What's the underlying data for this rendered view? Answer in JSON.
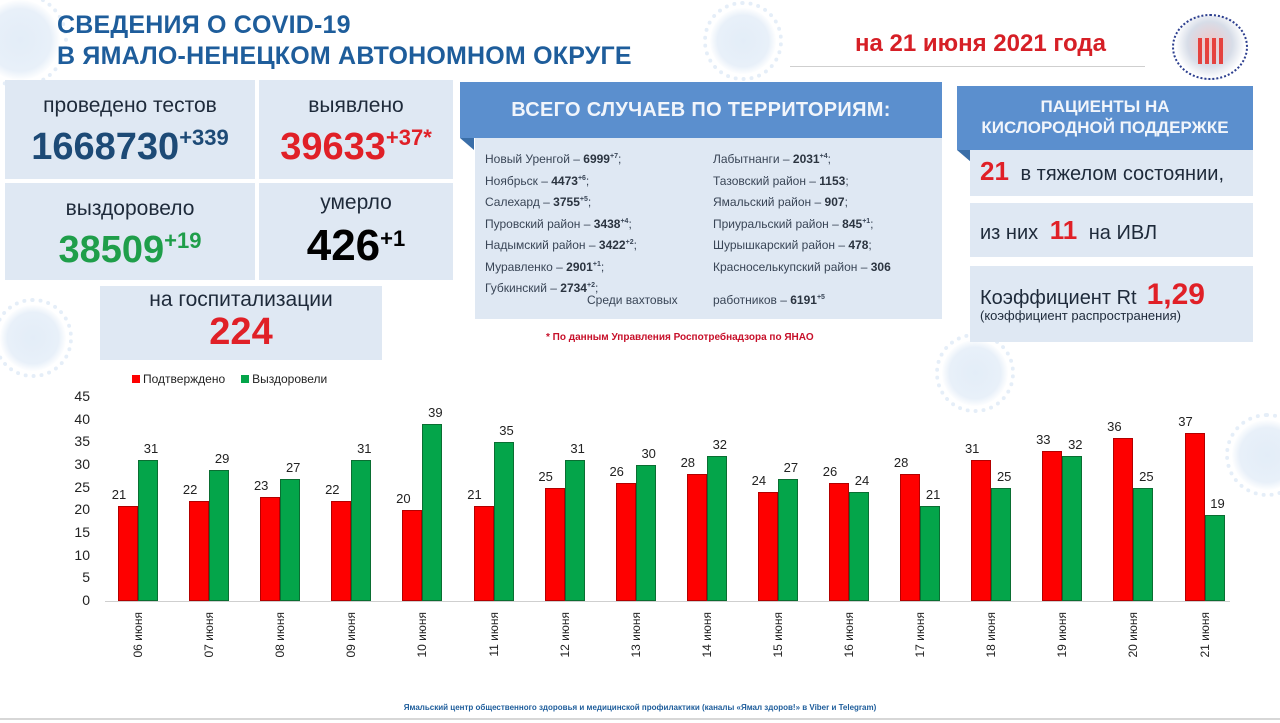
{
  "header": {
    "title_line1": "СВЕДЕНИЯ О COVID-19",
    "title_line2": "В ЯМАЛО-НЕНЕЦКОМ АВТОНОМНОМ ОКРУГЕ",
    "date": "на 21 июня 2021 года",
    "logo_text": "ЯМАЛ - территория здоровья!"
  },
  "stats": {
    "tests": {
      "label": "проведено тестов",
      "value": "1668730",
      "delta": "+339"
    },
    "detected": {
      "label": "выявлено",
      "value": "39633",
      "delta": "+37*"
    },
    "recovered": {
      "label": "выздоровело",
      "value": "38509",
      "delta": "+19"
    },
    "died": {
      "label": "умерло",
      "value": "426",
      "delta": "+1"
    },
    "hospitalized": {
      "label": "на госпитализации",
      "value": "224"
    }
  },
  "territories": {
    "title": "ВСЕГО СЛУЧАЕВ ПО ТЕРРИТОРИЯМ:",
    "left": [
      {
        "name": "Новый Уренгой – ",
        "value": "6999",
        "delta": "+7",
        "sep": ";"
      },
      {
        "name": "Ноябрьск – ",
        "value": "4473",
        "delta": "+6",
        "sep": ";"
      },
      {
        "name": "Салехард – ",
        "value": "3755",
        "delta": "+5",
        "sep": ";"
      },
      {
        "name": "Пуровский район – ",
        "value": "3438",
        "delta": "+4",
        "sep": ";"
      },
      {
        "name": "Надымский район – ",
        "value": "3422",
        "delta": "+2",
        "sep": ";"
      },
      {
        "name": "Муравленко – ",
        "value": "2901",
        "delta": "+1",
        "sep": ";"
      },
      {
        "name": "Губкинский – ",
        "value": "2734",
        "delta": "+2",
        "sep": ";"
      }
    ],
    "right": [
      {
        "name": "Лабытнанги – ",
        "value": "2031",
        "delta": "+4",
        "sep": ";"
      },
      {
        "name": "Тазовский район – ",
        "value": "1153",
        "delta": "",
        "sep": ";"
      },
      {
        "name": "Ямальский район – ",
        "value": "907",
        "delta": "",
        "sep": ";"
      },
      {
        "name": "Приуральский район – ",
        "value": "845",
        "delta": "+1",
        "sep": ";"
      },
      {
        "name": "Шурышкарский район – ",
        "value": "478",
        "delta": "",
        "sep": ";"
      },
      {
        "name": "Красноселькупский район – ",
        "value": "306",
        "delta": "",
        "sep": ""
      }
    ],
    "shift_workers_left": "Среди вахтовых",
    "shift_workers_right": "работников – ",
    "shift_workers_value": "6191",
    "shift_workers_delta": "+5"
  },
  "note": "* По данным Управления  Роспотребнадзора по ЯНАО",
  "oxygen": {
    "title_line1": "ПАЦИЕНТЫ НА",
    "title_line2": "КИСЛОРОДНОЙ ПОДДЕРЖКЕ",
    "severe_value": "21",
    "severe_text": "в тяжелом состоянии,",
    "ivl_prefix": "из них",
    "ivl_value": "11",
    "ivl_suffix": "на  ИВЛ",
    "rt_label": "Коэффициент Rt",
    "rt_value": "1,29",
    "rt_note": "(коэффициент распространения)"
  },
  "legend": {
    "confirmed": "Подтверждено",
    "recovered": "Выздоровели",
    "confirmed_color": "#fe0000",
    "recovered_color": "#04a54a"
  },
  "chart_data": {
    "type": "bar",
    "title": "",
    "xlabel": "",
    "ylabel": "",
    "ylim": [
      0,
      45
    ],
    "yticks": [
      "45",
      "40",
      "35",
      "30",
      "25",
      "20",
      "15",
      "10",
      "5",
      "0"
    ],
    "categories": [
      "06 июня",
      "07 июня",
      "08 июня",
      "09 июня",
      "10 июня",
      "11 июня",
      "12 июня",
      "13 июня",
      "14 июня",
      "15 июня",
      "16 июня",
      "17 июня",
      "18 июня",
      "19 июня",
      "20 июня",
      "21 июня"
    ],
    "series": [
      {
        "name": "Подтверждено",
        "color": "#fe0000",
        "values": [
          21,
          22,
          23,
          22,
          20,
          21,
          25,
          26,
          28,
          24,
          26,
          28,
          31,
          33,
          36,
          37
        ]
      },
      {
        "name": "Выздоровели",
        "color": "#04a54a",
        "values": [
          31,
          29,
          27,
          31,
          39,
          35,
          31,
          30,
          32,
          27,
          24,
          21,
          25,
          32,
          25,
          19
        ]
      }
    ],
    "legend_position": "top-left",
    "grid": false
  },
  "footer": "Ямальский центр общественного здоровья и медицинской профилактики (каналы «Ямал здоров!» в Viber  и Telegram)"
}
